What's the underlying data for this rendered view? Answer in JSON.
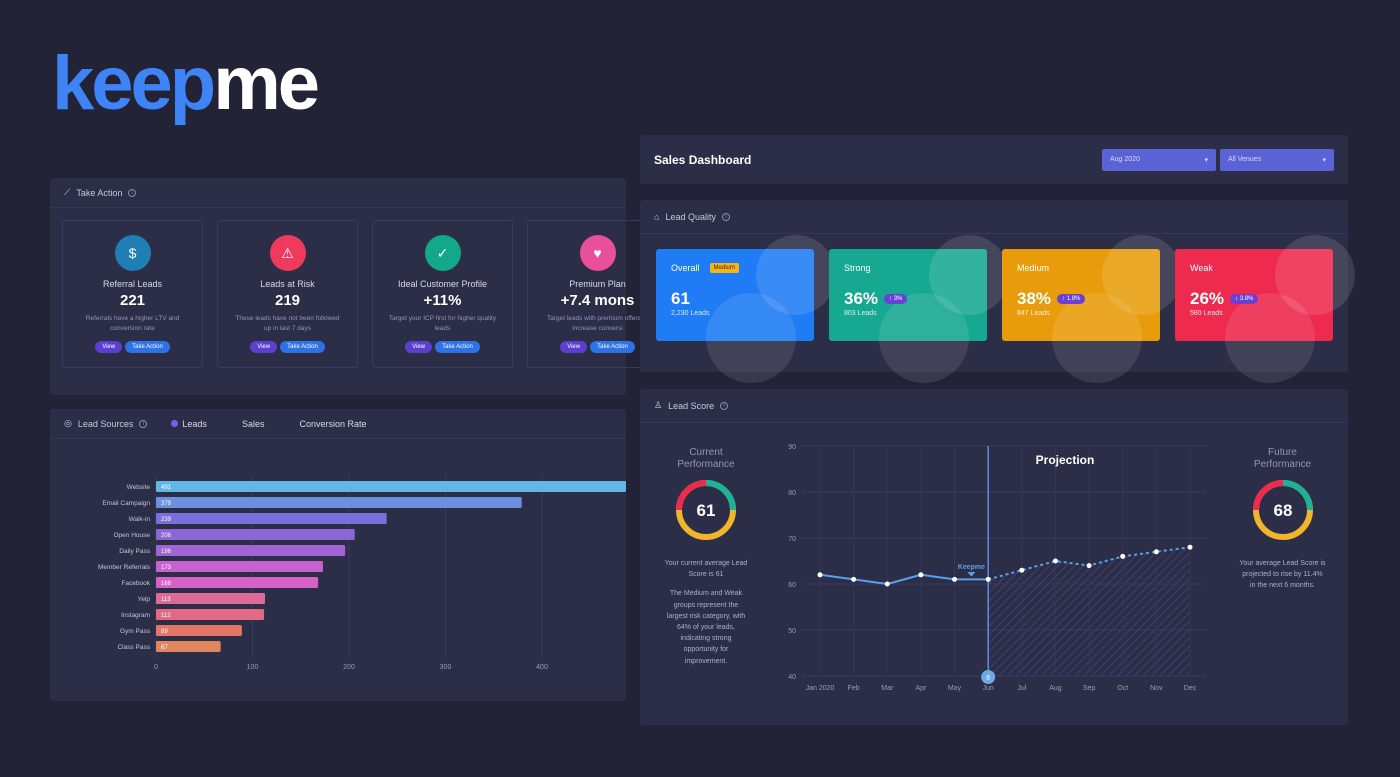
{
  "logo": {
    "part1": "keep",
    "part2": "me"
  },
  "take_action": {
    "title": "Take Action",
    "cards": [
      {
        "title": "Referral Leads",
        "value": "221",
        "desc": "Referrals have a higher LTV and conversion rate",
        "view": "View",
        "action": "Take Action",
        "icon": "dollar-icon",
        "color": "#1f7fb4",
        "glyph": "$"
      },
      {
        "title": "Leads at Risk",
        "value": "219",
        "desc": "These leads have not been followed up in last 7 days",
        "view": "View",
        "action": "Take Action",
        "icon": "user-alert-icon",
        "color": "#ef3a5d",
        "glyph": "⚠"
      },
      {
        "title": "Ideal Customer Profile",
        "value": "+11%",
        "desc": "Target your ICP first for higher quality leads",
        "view": "View",
        "action": "Take Action",
        "icon": "basket-icon",
        "color": "#13a88a",
        "glyph": "✓"
      },
      {
        "title": "Premium Plan",
        "value": "+7.4 mons",
        "desc": "Target leads with premium offers to increase conversi",
        "view": "View",
        "action": "Take Action",
        "icon": "trophy-icon",
        "color": "#ea4f9b",
        "glyph": "♥"
      }
    ]
  },
  "lead_sources": {
    "title": "Lead Sources",
    "legend": [
      "Leads",
      "Sales",
      "Conversion Rate"
    ]
  },
  "chart_data": [
    {
      "type": "bar",
      "orientation": "horizontal",
      "categories": [
        "Website",
        "Email Campaign",
        "Walk-in",
        "Open House",
        "Daily Pass",
        "Member Referrals",
        "Facebook",
        "Yelp",
        "Instagram",
        "Gym Pass",
        "Class Pass"
      ],
      "values": [
        491,
        379,
        239,
        206,
        196,
        173,
        168,
        113,
        112,
        89,
        67
      ],
      "xticks": [
        0,
        100,
        200,
        300,
        400
      ],
      "xlim": [
        0,
        480
      ],
      "colors": [
        "#63b7e4",
        "#6c8fe0",
        "#7a6fdd",
        "#8a66d6",
        "#a163d6",
        "#c663d0",
        "#d662c8",
        "#de6a9a",
        "#e26a86",
        "#e17669",
        "#df8660"
      ]
    },
    {
      "type": "line",
      "title": "Projection",
      "x": [
        "Jan 2020",
        "Feb",
        "Mar",
        "Apr",
        "May",
        "Jun",
        "Jul",
        "Aug",
        "Sep",
        "Oct",
        "Nov",
        "Dec"
      ],
      "series": [
        {
          "values": [
            62,
            61,
            60,
            62,
            61,
            61,
            63,
            65,
            64,
            66,
            67,
            68
          ]
        }
      ],
      "projection_start_index": 5,
      "annotation": {
        "label": "Keepme",
        "index": 4.5
      },
      "marker_label": "6",
      "yticks": [
        40,
        50,
        60,
        70,
        80,
        90
      ],
      "ylim": [
        40,
        90
      ]
    }
  ],
  "sales_header": {
    "title": "Sales Dashboard",
    "month": "Aug 2020",
    "venue": "All Venues"
  },
  "lead_quality": {
    "title": "Lead Quality",
    "cards": [
      {
        "label": "Overall",
        "badge": "Medium",
        "value": "61",
        "change": "",
        "sub": "2,230 Leads",
        "color": "#1f7cf4"
      },
      {
        "label": "Strong",
        "badge": "",
        "value": "36%",
        "change": "↑ 3%",
        "sub": "803 Leads",
        "color": "#17a892"
      },
      {
        "label": "Medium",
        "badge": "",
        "value": "38%",
        "change": "↑ 1.8%",
        "sub": "847 Leads",
        "color": "#e89c0c"
      },
      {
        "label": "Weak",
        "badge": "",
        "value": "26%",
        "change": "↓ 3.8%",
        "sub": "580 Leads",
        "color": "#ee2a4e"
      }
    ]
  },
  "lead_score": {
    "title": "Lead Score",
    "current": {
      "title1": "Current",
      "title2": "Performance",
      "value": "61",
      "text": [
        "Your current average Lead",
        "Score is 61",
        "",
        "The Medium and Weak",
        "groups represent the",
        "largest risk category, with",
        "64% of your leads,",
        "indicating strong",
        "opportunity for",
        "improvement."
      ]
    },
    "future": {
      "title1": "Future",
      "title2": "Performance",
      "value": "68",
      "text": [
        "Your average Lead Score is",
        "projected to rise by 11.4%",
        "in the next 6 months."
      ]
    }
  }
}
